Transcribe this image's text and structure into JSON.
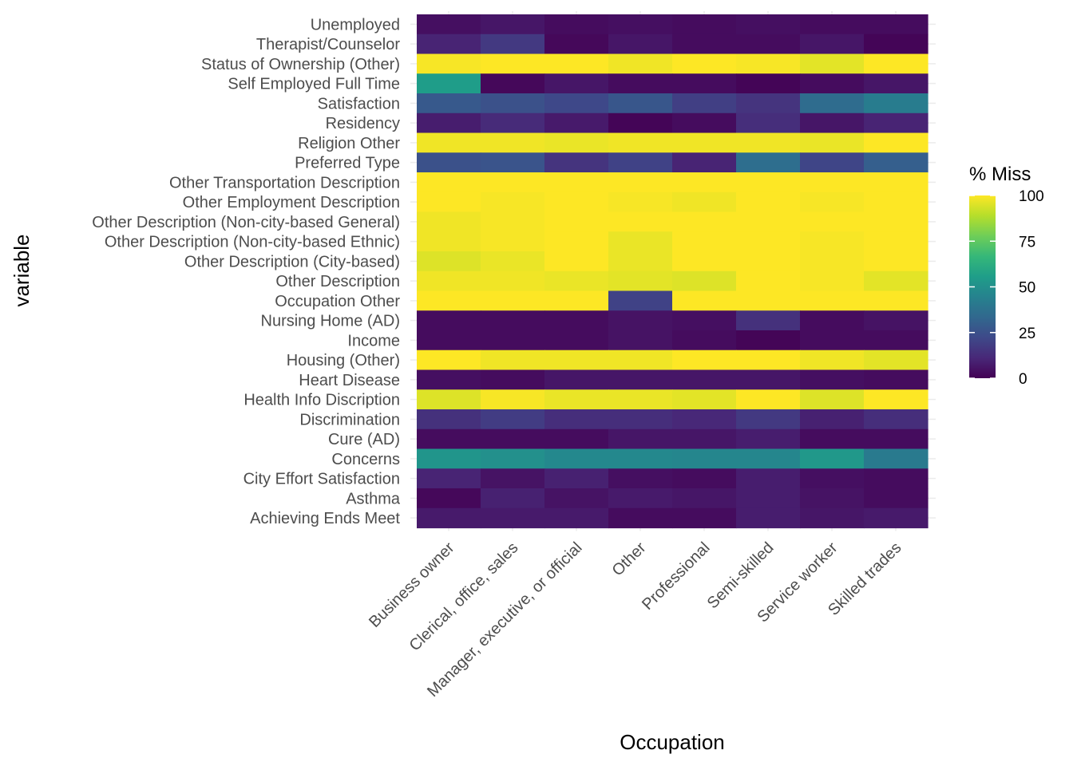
{
  "chart_data": {
    "type": "heatmap",
    "xlabel": "Occupation",
    "ylabel": "variable",
    "legend": {
      "title": "% Miss",
      "ticks": [
        0,
        25,
        50,
        75,
        100
      ],
      "range": [
        0,
        100
      ],
      "position": "right"
    },
    "colors": {
      "scale": [
        "#440154",
        "#482878",
        "#3e4989",
        "#31688e",
        "#26828e",
        "#1f9e89",
        "#35b779",
        "#6ece58",
        "#b5de2b",
        "#fde725"
      ],
      "grid": "#ebebeb",
      "background": "#ffffff"
    },
    "grid": true,
    "x": [
      "Business owner",
      "Clerical, office, sales",
      "Manager, executive, or official",
      "Other",
      "Professional",
      "Semi-skilled",
      "Service worker",
      "Skilled trades"
    ],
    "y": [
      "Unemployed",
      "Therapist/Counselor",
      "Status of Ownership (Other)",
      "Self Employed Full Time",
      "Satisfaction",
      "Residency",
      "Religion Other",
      "Preferred Type",
      "Other Transportation Description",
      "Other Employment Description",
      "Other Description (Non-city-based General)",
      "Other Description (Non-city-based Ethnic)",
      "Other Description (City-based)",
      "Other Description",
      "Occupation Other",
      "Nursing Home (AD)",
      "Income",
      "Housing (Other)",
      "Heart Disease",
      "Health Info Discription",
      "Discrimination",
      "Cure (AD)",
      "Concerns",
      "City Effort Satisfaction",
      "Asthma",
      "Achieving Ends Meet"
    ],
    "values": [
      [
        4,
        6,
        3,
        4,
        3,
        4,
        3,
        3
      ],
      [
        10,
        17,
        2,
        6,
        3,
        3,
        6,
        1
      ],
      [
        99,
        100,
        100,
        98,
        100,
        99,
        96,
        100
      ],
      [
        55,
        2,
        6,
        3,
        3,
        1,
        3,
        6
      ],
      [
        28,
        25,
        22,
        27,
        19,
        15,
        35,
        42
      ],
      [
        8,
        12,
        7,
        1,
        3,
        13,
        6,
        10
      ],
      [
        98,
        98,
        97,
        98,
        98,
        98,
        97,
        100
      ],
      [
        25,
        26,
        15,
        20,
        10,
        36,
        21,
        30
      ],
      [
        100,
        100,
        100,
        100,
        100,
        100,
        100,
        100
      ],
      [
        100,
        99,
        100,
        99,
        98,
        100,
        99,
        100
      ],
      [
        98,
        99,
        100,
        100,
        100,
        100,
        100,
        100
      ],
      [
        98,
        99,
        100,
        97,
        100,
        100,
        99,
        100
      ],
      [
        95,
        97,
        100,
        97,
        100,
        100,
        99,
        100
      ],
      [
        98,
        98,
        97,
        96,
        95,
        100,
        99,
        96
      ],
      [
        100,
        100,
        100,
        20,
        100,
        100,
        100,
        100
      ],
      [
        3,
        3,
        3,
        5,
        4,
        14,
        3,
        5
      ],
      [
        3,
        3,
        3,
        5,
        3,
        1,
        3,
        3
      ],
      [
        100,
        98,
        98,
        98,
        100,
        100,
        98,
        96
      ],
      [
        4,
        3,
        6,
        6,
        6,
        6,
        4,
        3
      ],
      [
        95,
        99,
        97,
        97,
        96,
        100,
        95,
        100
      ],
      [
        14,
        18,
        13,
        13,
        11,
        17,
        9,
        13
      ],
      [
        3,
        3,
        3,
        6,
        6,
        8,
        3,
        3
      ],
      [
        52,
        50,
        47,
        47,
        46,
        46,
        53,
        41
      ],
      [
        10,
        5,
        9,
        4,
        3,
        8,
        4,
        3
      ],
      [
        2,
        9,
        5,
        7,
        6,
        8,
        5,
        3
      ],
      [
        7,
        7,
        7,
        3,
        3,
        8,
        6,
        7
      ]
    ]
  }
}
